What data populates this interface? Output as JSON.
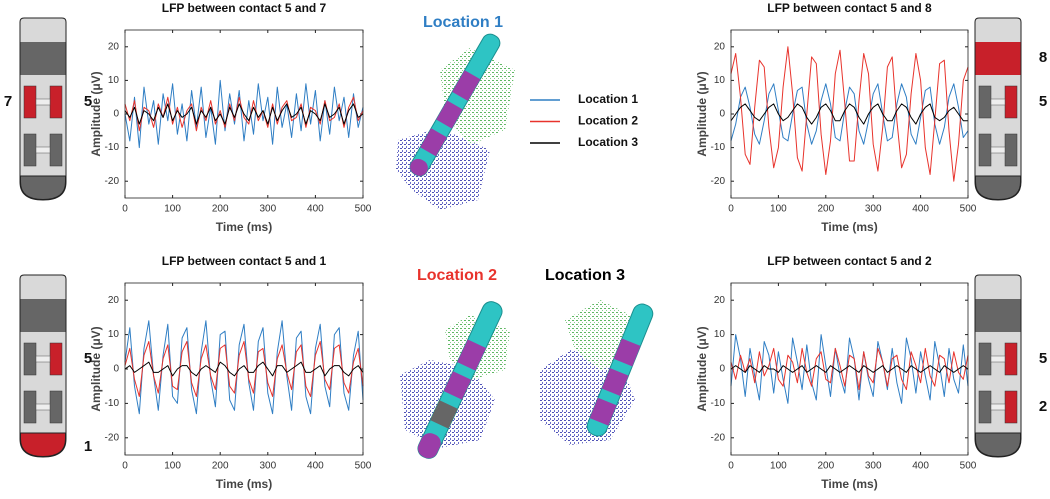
{
  "chart_data": [
    {
      "type": "line",
      "title": "LFP between contact 5 and 7",
      "xlabel": "Time (ms)",
      "ylabel": "Amplitude (μV)",
      "x": [
        0,
        10,
        20,
        30,
        40,
        50,
        60,
        70,
        80,
        90,
        100,
        110,
        120,
        130,
        140,
        150,
        160,
        170,
        180,
        190,
        200,
        210,
        220,
        230,
        240,
        250,
        260,
        270,
        280,
        290,
        300,
        310,
        320,
        330,
        340,
        350,
        360,
        370,
        380,
        390,
        400,
        410,
        420,
        430,
        440,
        450,
        460,
        470,
        480,
        490,
        500
      ],
      "xlim": [
        0,
        500
      ],
      "xticks": [
        0,
        100,
        200,
        300,
        400,
        500
      ],
      "ylim": [
        -25,
        25
      ],
      "yticks": [
        -20,
        -10,
        0,
        10,
        20
      ],
      "series": [
        {
          "name": "Location 1",
          "color": "#2f7ec4",
          "values": [
            0,
            -8,
            5,
            -10,
            8,
            -3,
            4,
            -9,
            6,
            -2,
            9,
            -6,
            3,
            -8,
            7,
            -4,
            8,
            -7,
            2,
            -9,
            10,
            -5,
            6,
            -3,
            7,
            -8,
            4,
            -6,
            9,
            -2,
            5,
            -9,
            8,
            -4,
            3,
            -7,
            6,
            -5,
            9,
            -3,
            7,
            -8,
            4,
            -6,
            8,
            -2,
            5,
            -7,
            6,
            -4,
            2
          ]
        },
        {
          "name": "Location 2",
          "color": "#e8332c",
          "values": [
            3,
            -2,
            4,
            -5,
            2,
            1,
            -4,
            3,
            -1,
            5,
            -3,
            2,
            -4,
            1,
            3,
            -5,
            2,
            -2,
            4,
            -3,
            1,
            -4,
            3,
            -2,
            5,
            -1,
            -3,
            4,
            -2,
            1,
            -4,
            3,
            -3,
            2,
            4,
            -2,
            -1,
            3,
            -4,
            2,
            1,
            -3,
            4,
            -2,
            -1,
            3,
            -4,
            2,
            5,
            -2,
            1
          ]
        },
        {
          "name": "Location 3",
          "color": "#000000",
          "values": [
            1,
            -1,
            2,
            -3,
            1,
            0,
            -2,
            2,
            -1,
            3,
            -2,
            1,
            -1,
            0,
            2,
            -3,
            1,
            -1,
            2,
            -2,
            0,
            -3,
            2,
            -1,
            3,
            0,
            -2,
            2,
            -1,
            1,
            -3,
            2,
            -2,
            1,
            3,
            -1,
            0,
            2,
            -3,
            1,
            0,
            -2,
            3,
            -1,
            0,
            2,
            -3,
            1,
            3,
            -1,
            0
          ]
        }
      ]
    },
    {
      "type": "line",
      "title": "LFP between contact 5 and 8",
      "xlabel": "Time (ms)",
      "ylabel": "Amplitude (μV)",
      "x": [
        0,
        10,
        20,
        30,
        40,
        50,
        60,
        70,
        80,
        90,
        100,
        110,
        120,
        130,
        140,
        150,
        160,
        170,
        180,
        190,
        200,
        210,
        220,
        230,
        240,
        250,
        260,
        270,
        280,
        290,
        300,
        310,
        320,
        330,
        340,
        350,
        360,
        370,
        380,
        390,
        400,
        410,
        420,
        430,
        440,
        450,
        460,
        470,
        480,
        490,
        500
      ],
      "xlim": [
        0,
        500
      ],
      "xticks": [
        0,
        100,
        200,
        300,
        400,
        500
      ],
      "ylim": [
        -25,
        25
      ],
      "yticks": [
        -20,
        -10,
        0,
        10,
        20
      ],
      "series": [
        {
          "color": "#2f7ec4",
          "values": [
            -8,
            -3,
            5,
            8,
            2,
            -6,
            -9,
            -2,
            6,
            9,
            1,
            -7,
            -8,
            0,
            7,
            8,
            -3,
            -9,
            -5,
            4,
            9,
            3,
            -7,
            -8,
            1,
            8,
            6,
            -5,
            -9,
            -2,
            6,
            9,
            0,
            -8,
            -7,
            3,
            9,
            5,
            -6,
            -9,
            -1,
            7,
            8,
            -3,
            -9,
            -4,
            5,
            9,
            2,
            -7,
            -5
          ]
        },
        {
          "color": "#e8332c",
          "values": [
            12,
            18,
            5,
            -12,
            -15,
            2,
            16,
            14,
            -4,
            -16,
            -10,
            8,
            20,
            6,
            -13,
            -17,
            0,
            17,
            15,
            -6,
            -18,
            -8,
            12,
            19,
            3,
            -14,
            -14,
            4,
            18,
            12,
            -9,
            -17,
            -4,
            14,
            17,
            -2,
            -16,
            -12,
            6,
            18,
            10,
            -10,
            -18,
            -2,
            15,
            16,
            -5,
            -20,
            -9,
            10,
            14
          ]
        },
        {
          "color": "#000000",
          "values": [
            -2,
            0,
            2,
            3,
            1,
            -1,
            -2,
            0,
            2,
            3,
            0,
            -2,
            -1,
            1,
            3,
            2,
            -1,
            -3,
            -1,
            2,
            3,
            1,
            -2,
            -2,
            1,
            3,
            2,
            -1,
            -3,
            0,
            2,
            3,
            0,
            -2,
            -2,
            1,
            3,
            2,
            -1,
            -3,
            0,
            2,
            3,
            -1,
            -2,
            -1,
            1,
            2,
            0,
            -2,
            -2
          ]
        }
      ]
    },
    {
      "type": "line",
      "title": "LFP between contact 5 and 1",
      "xlabel": "Time (ms)",
      "ylabel": "Amplitude (μV)",
      "x": [
        0,
        10,
        20,
        30,
        40,
        50,
        60,
        70,
        80,
        90,
        100,
        110,
        120,
        130,
        140,
        150,
        160,
        170,
        180,
        190,
        200,
        210,
        220,
        230,
        240,
        250,
        260,
        270,
        280,
        290,
        300,
        310,
        320,
        330,
        340,
        350,
        360,
        370,
        380,
        390,
        400,
        410,
        420,
        430,
        440,
        450,
        460,
        470,
        480,
        490,
        500
      ],
      "xlim": [
        0,
        500
      ],
      "xticks": [
        0,
        100,
        200,
        300,
        400,
        500
      ],
      "ylim": [
        -25,
        25
      ],
      "yticks": [
        -20,
        -10,
        0,
        10,
        20
      ],
      "series": [
        {
          "color": "#2f7ec4",
          "values": [
            2,
            12,
            -5,
            -13,
            6,
            14,
            -2,
            -12,
            4,
            13,
            -8,
            -10,
            9,
            12,
            -6,
            -13,
            5,
            14,
            -3,
            -11,
            10,
            11,
            -9,
            -12,
            7,
            13,
            -4,
            -12,
            8,
            12,
            -7,
            -13,
            5,
            14,
            -2,
            -12,
            9,
            11,
            -8,
            -13,
            6,
            13,
            -5,
            -11,
            10,
            12,
            -7,
            -12,
            4,
            11,
            -9
          ]
        },
        {
          "color": "#e8332c",
          "values": [
            1,
            6,
            -3,
            -8,
            4,
            8,
            -2,
            -7,
            3,
            7,
            -5,
            -6,
            5,
            8,
            -4,
            -8,
            3,
            7,
            -2,
            -6,
            6,
            7,
            -5,
            -7,
            4,
            8,
            -3,
            -7,
            5,
            6,
            -4,
            -8,
            3,
            7,
            -1,
            -6,
            5,
            7,
            -5,
            -8,
            4,
            8,
            -3,
            -6,
            6,
            7,
            -4,
            -7,
            2,
            6,
            -5
          ]
        },
        {
          "color": "#000000",
          "values": [
            0,
            1,
            -1,
            0,
            1,
            2,
            -1,
            -1,
            0,
            1,
            -2,
            0,
            1,
            1,
            -1,
            -2,
            0,
            1,
            0,
            -1,
            2,
            1,
            -1,
            -2,
            0,
            1,
            -1,
            -1,
            1,
            2,
            0,
            -2,
            1,
            1,
            -1,
            0,
            1,
            2,
            -1,
            -1,
            0,
            1,
            -2,
            0,
            1,
            1,
            -1,
            -2,
            0,
            1,
            -1
          ]
        }
      ]
    },
    {
      "type": "line",
      "title": "LFP between contact 5 and 2",
      "xlabel": "Time (ms)",
      "ylabel": "Amplitude (μV)",
      "x": [
        0,
        10,
        20,
        30,
        40,
        50,
        60,
        70,
        80,
        90,
        100,
        110,
        120,
        130,
        140,
        150,
        160,
        170,
        180,
        190,
        200,
        210,
        220,
        230,
        240,
        250,
        260,
        270,
        280,
        290,
        300,
        310,
        320,
        330,
        340,
        350,
        360,
        370,
        380,
        390,
        400,
        410,
        420,
        430,
        440,
        450,
        460,
        470,
        480,
        490,
        500
      ],
      "xlim": [
        0,
        500
      ],
      "xticks": [
        0,
        100,
        200,
        300,
        400,
        500
      ],
      "ylim": [
        -25,
        25
      ],
      "yticks": [
        -20,
        -10,
        0,
        10,
        20
      ],
      "series": [
        {
          "color": "#2f7ec4",
          "values": [
            -5,
            10,
            3,
            -8,
            6,
            -2,
            -9,
            8,
            4,
            -7,
            5,
            -3,
            -10,
            9,
            2,
            -6,
            7,
            -4,
            -9,
            10,
            1,
            -8,
            6,
            -2,
            -7,
            9,
            3,
            -9,
            5,
            -3,
            -8,
            8,
            2,
            -6,
            6,
            -4,
            -10,
            9,
            3,
            -7,
            5,
            -2,
            -9,
            8,
            1,
            -8,
            6,
            -3,
            -7,
            7,
            -5
          ]
        },
        {
          "color": "#e8332c",
          "values": [
            2,
            -3,
            4,
            -1,
            3,
            -4,
            5,
            -2,
            1,
            6,
            -3,
            -5,
            4,
            2,
            -4,
            6,
            -1,
            -5,
            3,
            5,
            -3,
            -4,
            6,
            1,
            -5,
            4,
            3,
            -6,
            5,
            -2,
            -4,
            6,
            2,
            -5,
            3,
            4,
            -3,
            -6,
            5,
            1,
            -4,
            6,
            -2,
            -5,
            4,
            3,
            -4,
            5,
            -1,
            -3,
            4
          ]
        },
        {
          "color": "#000000",
          "values": [
            0,
            1,
            0,
            -1,
            1,
            0,
            -1,
            1,
            0,
            0,
            -1,
            1,
            0,
            -1,
            0,
            1,
            -1,
            0,
            1,
            0,
            -1,
            1,
            0,
            -1,
            0,
            1,
            0,
            -1,
            1,
            0,
            -1,
            0,
            1,
            -1,
            0,
            1,
            0,
            -1,
            1,
            0,
            -1,
            0,
            1,
            0,
            -1,
            1,
            0,
            -1,
            0,
            1,
            0
          ]
        }
      ]
    }
  ],
  "locations": [
    {
      "label": "Location 1",
      "color": "#2f7ec4"
    },
    {
      "label": "Location 2",
      "color": "#e8332c"
    },
    {
      "label": "Location 3",
      "color": "#000000"
    }
  ],
  "electrodes": [
    {
      "labels": [
        "7",
        "5"
      ]
    },
    {
      "labels": [
        "8",
        "5"
      ]
    },
    {
      "labels": [
        "5",
        "1"
      ]
    },
    {
      "labels": [
        "5",
        "2"
      ]
    }
  ]
}
